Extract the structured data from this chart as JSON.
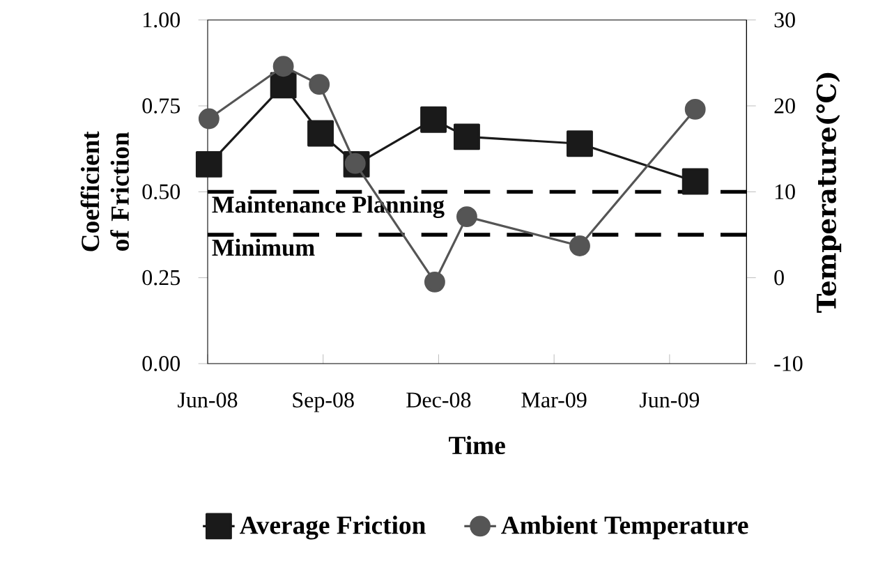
{
  "chart_data": {
    "type": "line",
    "xlabel": "Time",
    "ylabel": "Coefficient of Friction",
    "y2label": "Temperature(℃)",
    "xlim": [
      "2008-06-01",
      "2009-08-01"
    ],
    "xticks": [
      {
        "value": "2008-06-01",
        "label": "Jun-08"
      },
      {
        "value": "2008-09-01",
        "label": "Sep-08"
      },
      {
        "value": "2008-12-01",
        "label": "Dec-08"
      },
      {
        "value": "2009-03-01",
        "label": "Mar-09"
      },
      {
        "value": "2009-06-01",
        "label": "Jun-09"
      }
    ],
    "ylim": [
      0,
      1
    ],
    "yticks": [
      {
        "value": 0,
        "label": "0.00"
      },
      {
        "value": 0.25,
        "label": "0.25"
      },
      {
        "value": 0.5,
        "label": "0.50"
      },
      {
        "value": 0.75,
        "label": "0.75"
      },
      {
        "value": 1,
        "label": "1.00"
      }
    ],
    "y2lim": [
      -10,
      30
    ],
    "y2ticks": [
      -10,
      0,
      10,
      20,
      30
    ],
    "series": [
      {
        "name": "Average Friction",
        "color": "#1a1a1a",
        "marker": "square",
        "x": [
          "2008-06-02",
          "2008-07-30",
          "2008-08-29",
          "2008-09-27",
          "2008-11-27",
          "2008-12-23",
          "2009-03-21",
          "2009-06-21"
        ],
        "values": [
          0.58,
          0.81,
          0.67,
          0.58,
          0.71,
          0.66,
          0.64,
          0.53
        ]
      },
      {
        "name": "Ambient Temperature",
        "color": "#555555",
        "marker": "circle",
        "axis": "y2",
        "x": [
          "2008-06-02",
          "2008-07-30",
          "2008-08-28",
          "2008-09-26",
          "2008-11-28",
          "2008-12-23",
          "2009-03-21",
          "2009-06-21"
        ],
        "values": [
          18.5,
          24.6,
          22.5,
          13.3,
          -0.5,
          7.1,
          3.7,
          19.6
        ]
      }
    ],
    "ref_lines": [
      {
        "axis": "y",
        "value": 0.5,
        "label": "Maintenance Planning",
        "color": "#000000",
        "line_style": "dashed"
      },
      {
        "axis": "y",
        "value": 0.375,
        "label": "Minimum",
        "color": "#000000",
        "line_style": "dashed"
      }
    ],
    "legend": "bottom",
    "grid": false
  }
}
